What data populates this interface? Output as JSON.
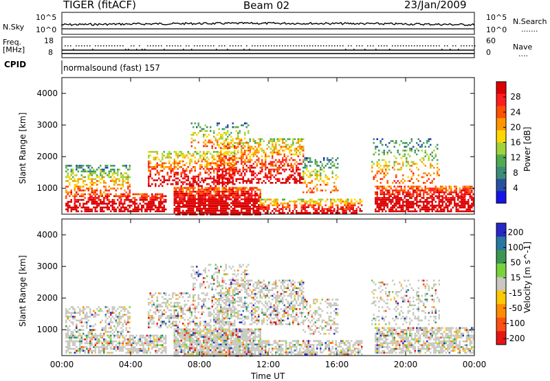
{
  "header": {
    "radar": "TIGER (fitACF)",
    "beam": "Beam 02",
    "date": "23/Jan/2009"
  },
  "panels": {
    "nsky": {
      "label": "N.Sky",
      "tick_top": "10^5",
      "tick_bottom": "10^0",
      "right_label": "N.Search",
      "right_top": "10^5",
      "right_bottom": "10^0",
      "right_marker": "......."
    },
    "freq": {
      "label_line1": "Freq.",
      "label_line2": "[MHz]",
      "tick_top": "18",
      "tick_bottom": "8",
      "right_label": "Nave",
      "right_top": "60",
      "right_bottom": "0",
      "right_marker": "...."
    },
    "cpid": {
      "label": "CPID",
      "value": "normalsound (fast) 157"
    }
  },
  "colors": {
    "power": [
      "#1414e6",
      "#2850a0",
      "#3c8c78",
      "#50aa50",
      "#a0d23c",
      "#ffd700",
      "#ff9600",
      "#ff5000",
      "#ff1e1e",
      "#dc0000"
    ],
    "velocity": [
      "#2828c8",
      "#2878a0",
      "#3c9650",
      "#78d23c",
      "#c8c8c0",
      "#ffc800",
      "#ff8c00",
      "#ff5014",
      "#e61414"
    ],
    "ground_scatter": "#c8c8c0"
  },
  "chart_data": [
    {
      "type": "heatmap",
      "title": "Power",
      "xlabel": "Time UT",
      "ylabel": "Slant Range [km]",
      "colorbar_label": "Power [dB]",
      "colorbar_ticks": [
        "4",
        "8",
        "12",
        "16",
        "20",
        "24",
        "28"
      ],
      "x_ticks": [
        "00:00",
        "04:00",
        "08:00",
        "12:00",
        "16:00",
        "20:00",
        "00:00"
      ],
      "y_ticks": [
        "1000",
        "2000",
        "3000",
        "4000"
      ],
      "xlim": [
        0,
        24
      ],
      "ylim": [
        180,
        4500
      ]
    },
    {
      "type": "heatmap",
      "title": "Velocity",
      "xlabel": "Time UT",
      "ylabel": "Slant Range [km]",
      "colorbar_label": "Velocity [m s^-1]",
      "colorbar_ticks": [
        "200",
        "100",
        "50",
        "15",
        "-15",
        "-50",
        "-100",
        "-200"
      ],
      "x_ticks": [
        "00:00",
        "04:00",
        "08:00",
        "12:00",
        "16:00",
        "20:00",
        "00:00"
      ],
      "y_ticks": [
        "1000",
        "2000",
        "3000",
        "4000"
      ],
      "xlim": [
        0,
        24
      ],
      "ylim": [
        180,
        4500
      ]
    }
  ]
}
